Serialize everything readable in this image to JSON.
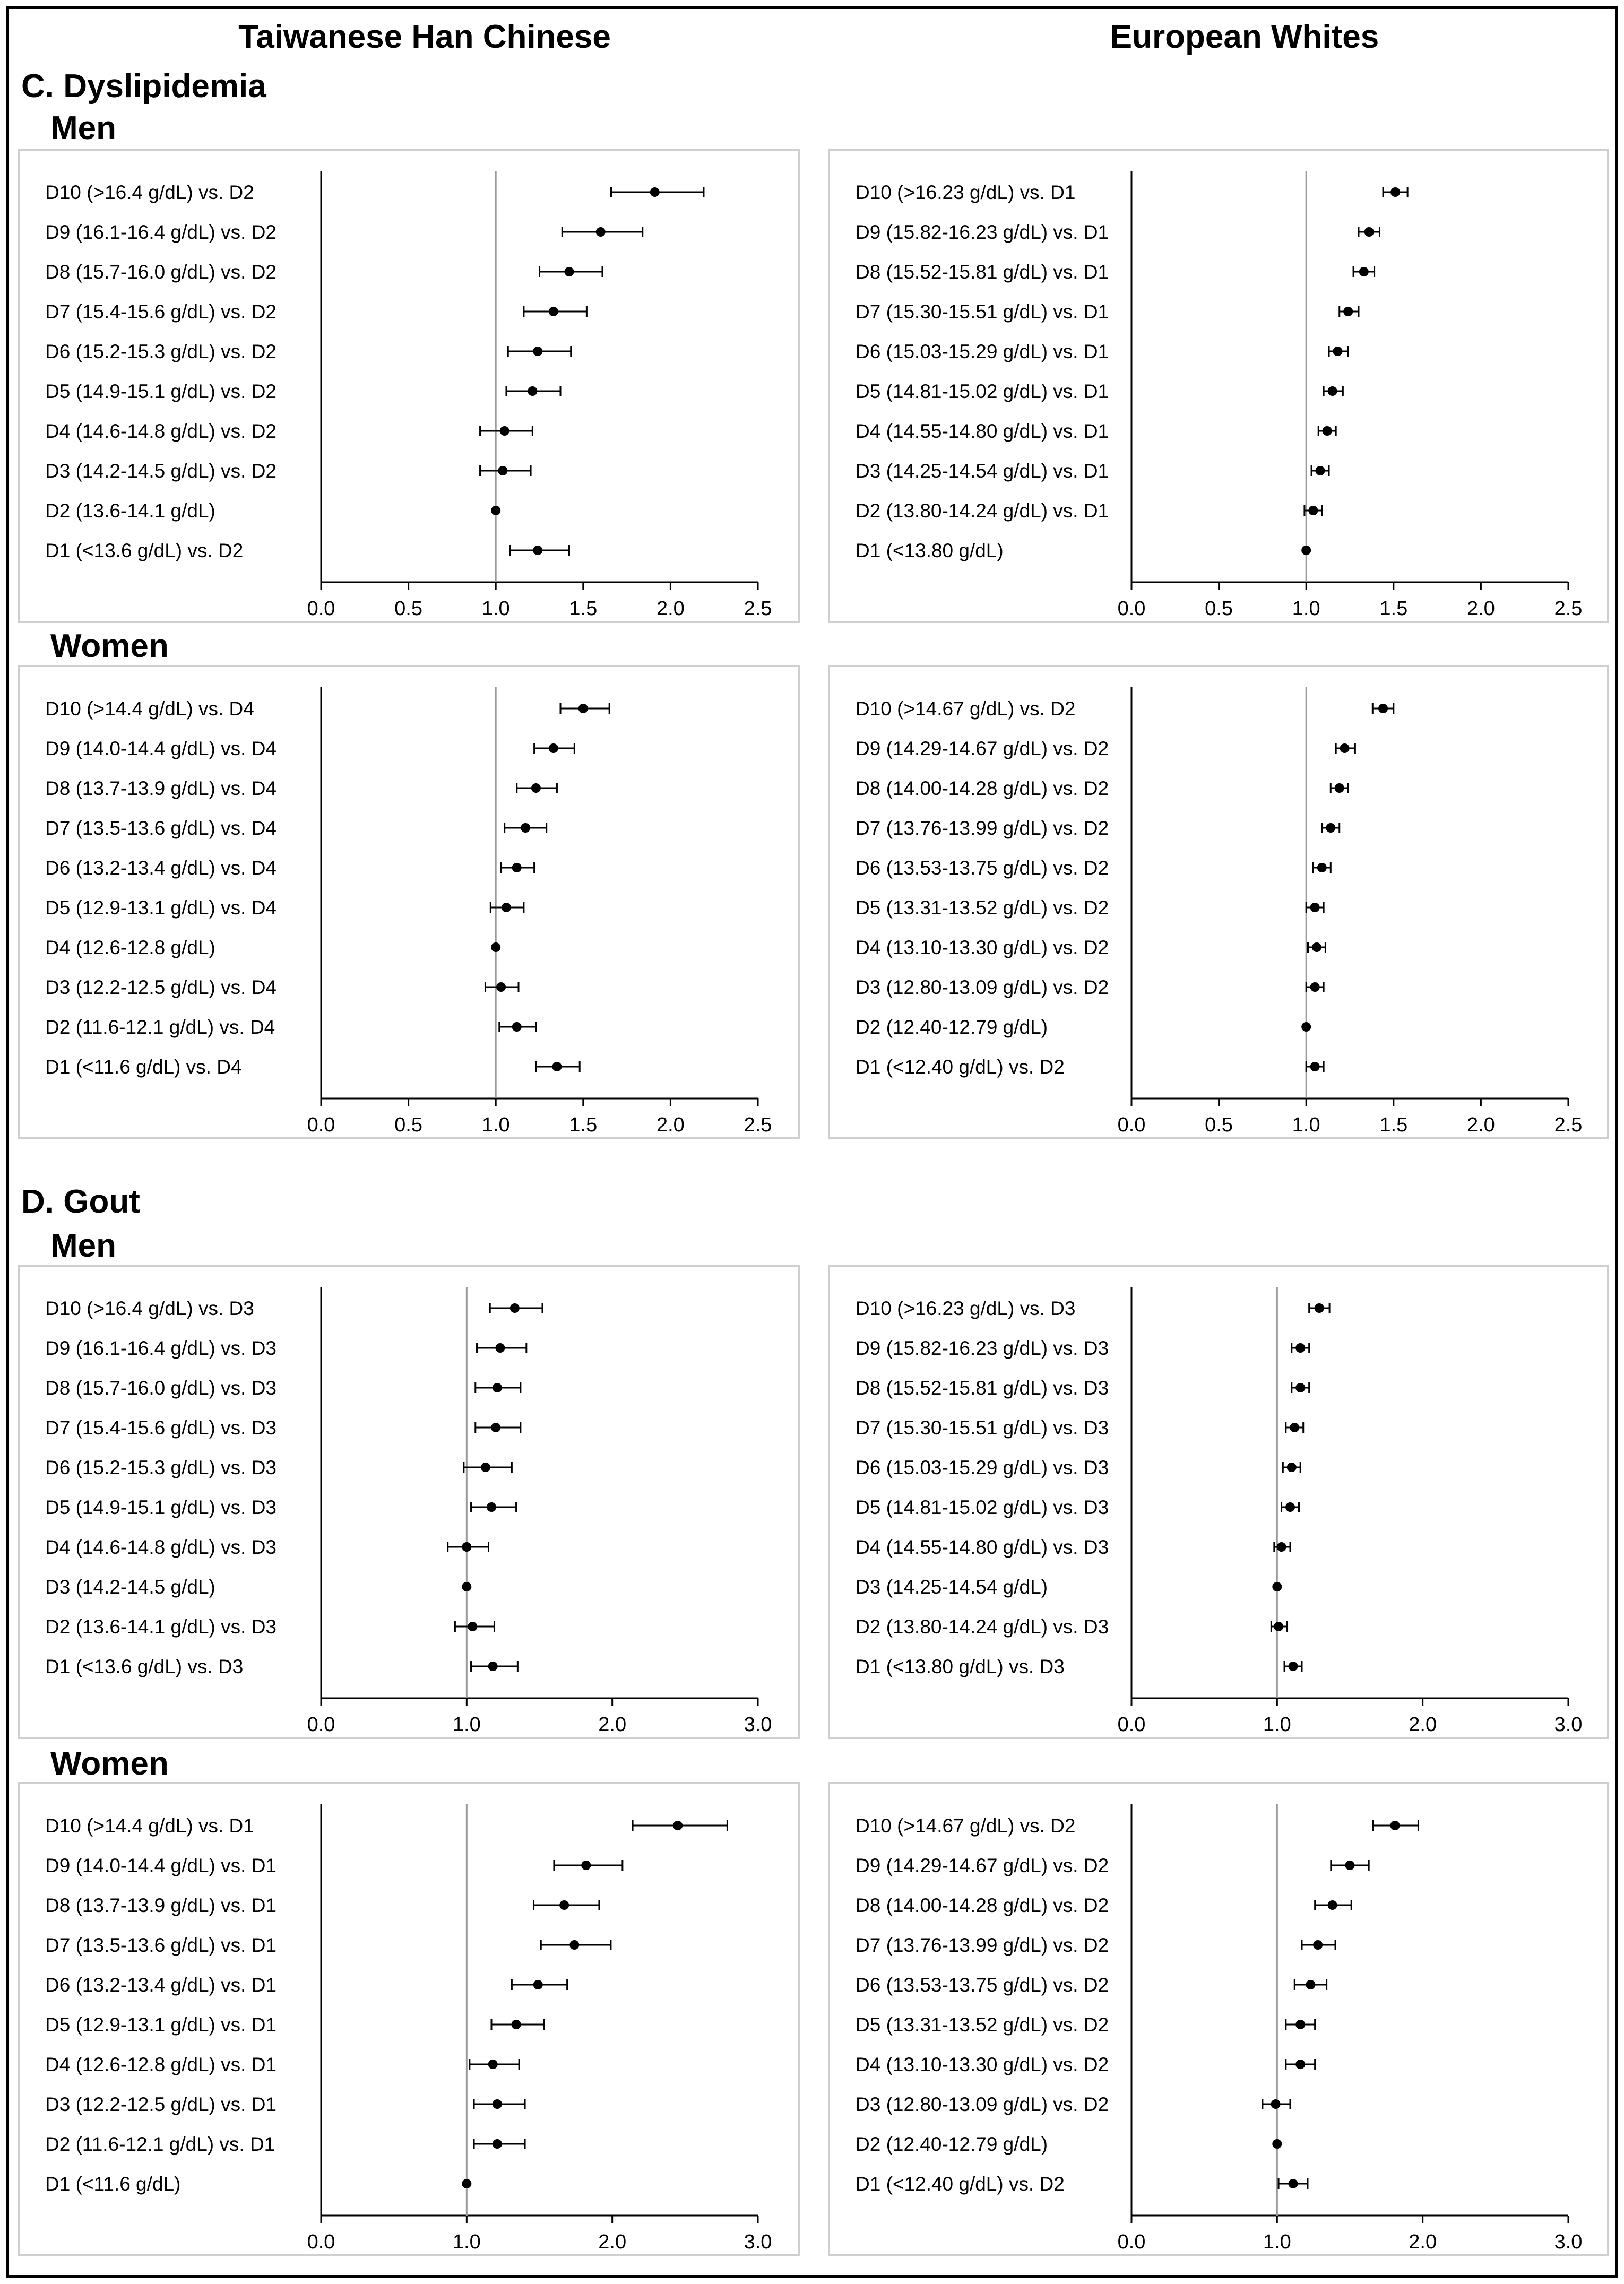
{
  "headers": {
    "left": "Taiwanese Han Chinese",
    "right": "European Whites"
  },
  "sections": [
    {
      "title": "C. Dyslipidemia",
      "groups": [
        "Men",
        "Women"
      ]
    },
    {
      "title": "D. Gout",
      "groups": [
        "Men",
        "Women"
      ]
    }
  ],
  "chart_data": [
    {
      "type": "forest",
      "population": "Taiwanese Han Chinese",
      "outcome": "Dyslipidemia",
      "sex": "Men",
      "xlim": [
        0,
        2.5
      ],
      "ticks": [
        "0.0",
        "0.5",
        "1.0",
        "1.5",
        "2.0",
        "2.5"
      ],
      "reference_line": 1.0,
      "rows": [
        {
          "label": "D10 (>16.4 g/dL) vs. D2",
          "est": 1.91,
          "lo": 1.66,
          "hi": 2.19
        },
        {
          "label": "D9 (16.1-16.4 g/dL) vs. D2",
          "est": 1.6,
          "lo": 1.38,
          "hi": 1.84
        },
        {
          "label": "D8 (15.7-16.0 g/dL) vs. D2",
          "est": 1.42,
          "lo": 1.25,
          "hi": 1.61
        },
        {
          "label": "D7 (15.4-15.6 g/dL) vs. D2",
          "est": 1.33,
          "lo": 1.16,
          "hi": 1.52
        },
        {
          "label": "D6 (15.2-15.3 g/dL) vs. D2",
          "est": 1.24,
          "lo": 1.07,
          "hi": 1.43
        },
        {
          "label": "D5 (14.9-15.1 g/dL) vs. D2",
          "est": 1.21,
          "lo": 1.06,
          "hi": 1.37
        },
        {
          "label": "D4 (14.6-14.8 g/dL) vs. D2",
          "est": 1.05,
          "lo": 0.91,
          "hi": 1.21
        },
        {
          "label": "D3 (14.2-14.5 g/dL) vs. D2",
          "est": 1.04,
          "lo": 0.91,
          "hi": 1.2
        },
        {
          "label": "D2 (13.6-14.1 g/dL)",
          "est": 1.0,
          "ref": true
        },
        {
          "label": "D1 (<13.6 g/dL) vs. D2",
          "est": 1.24,
          "lo": 1.08,
          "hi": 1.42
        }
      ]
    },
    {
      "type": "forest",
      "population": "European Whites",
      "outcome": "Dyslipidemia",
      "sex": "Men",
      "xlim": [
        0,
        2.5
      ],
      "ticks": [
        "0.0",
        "0.5",
        "1.0",
        "1.5",
        "2.0",
        "2.5"
      ],
      "reference_line": 1.0,
      "rows": [
        {
          "label": "D10 (>16.23 g/dL) vs. D1",
          "est": 1.51,
          "lo": 1.44,
          "hi": 1.58
        },
        {
          "label": "D9 (15.82-16.23 g/dL) vs. D1",
          "est": 1.36,
          "lo": 1.3,
          "hi": 1.42
        },
        {
          "label": "D8 (15.52-15.81 g/dL) vs. D1",
          "est": 1.33,
          "lo": 1.27,
          "hi": 1.39
        },
        {
          "label": "D7 (15.30-15.51 g/dL) vs. D1",
          "est": 1.24,
          "lo": 1.19,
          "hi": 1.3
        },
        {
          "label": "D6 (15.03-15.29 g/dL) vs. D1",
          "est": 1.18,
          "lo": 1.13,
          "hi": 1.24
        },
        {
          "label": "D5 (14.81-15.02 g/dL) vs. D1",
          "est": 1.15,
          "lo": 1.1,
          "hi": 1.21
        },
        {
          "label": "D4 (14.55-14.80 g/dL) vs. D1",
          "est": 1.12,
          "lo": 1.07,
          "hi": 1.17
        },
        {
          "label": "D3 (14.25-14.54 g/dL) vs. D1",
          "est": 1.08,
          "lo": 1.03,
          "hi": 1.13
        },
        {
          "label": "D2 (13.80-14.24 g/dL) vs. D1",
          "est": 1.04,
          "lo": 0.99,
          "hi": 1.09
        },
        {
          "label": "D1 (<13.80 g/dL)",
          "est": 1.0,
          "ref": true
        }
      ]
    },
    {
      "type": "forest",
      "population": "Taiwanese Han Chinese",
      "outcome": "Dyslipidemia",
      "sex": "Women",
      "xlim": [
        0,
        2.5
      ],
      "ticks": [
        "0.0",
        "0.5",
        "1.0",
        "1.5",
        "2.0",
        "2.5"
      ],
      "reference_line": 1.0,
      "rows": [
        {
          "label": "D10 (>14.4 g/dL) vs. D4",
          "est": 1.5,
          "lo": 1.37,
          "hi": 1.65
        },
        {
          "label": "D9 (14.0-14.4 g/dL) vs. D4",
          "est": 1.33,
          "lo": 1.22,
          "hi": 1.45
        },
        {
          "label": "D8 (13.7-13.9 g/dL) vs. D4",
          "est": 1.23,
          "lo": 1.12,
          "hi": 1.35
        },
        {
          "label": "D7 (13.5-13.6 g/dL) vs. D4",
          "est": 1.17,
          "lo": 1.05,
          "hi": 1.29
        },
        {
          "label": "D6 (13.2-13.4 g/dL) vs. D4",
          "est": 1.12,
          "lo": 1.03,
          "hi": 1.22
        },
        {
          "label": "D5 (12.9-13.1 g/dL) vs. D4",
          "est": 1.06,
          "lo": 0.97,
          "hi": 1.16
        },
        {
          "label": "D4 (12.6-12.8 g/dL)",
          "est": 1.0,
          "ref": true
        },
        {
          "label": "D3 (12.2-12.5 g/dL) vs. D4",
          "est": 1.03,
          "lo": 0.94,
          "hi": 1.13
        },
        {
          "label": "D2 (11.6-12.1 g/dL) vs. D4",
          "est": 1.12,
          "lo": 1.02,
          "hi": 1.23
        },
        {
          "label": "D1 (<11.6 g/dL) vs. D4",
          "est": 1.35,
          "lo": 1.23,
          "hi": 1.48
        }
      ]
    },
    {
      "type": "forest",
      "population": "European Whites",
      "outcome": "Dyslipidemia",
      "sex": "Women",
      "xlim": [
        0,
        2.5
      ],
      "ticks": [
        "0.0",
        "0.5",
        "1.0",
        "1.5",
        "2.0",
        "2.5"
      ],
      "reference_line": 1.0,
      "rows": [
        {
          "label": "D10 (>14.67 g/dL) vs. D2",
          "est": 1.44,
          "lo": 1.38,
          "hi": 1.5
        },
        {
          "label": "D9 (14.29-14.67 g/dL) vs. D2",
          "est": 1.22,
          "lo": 1.17,
          "hi": 1.28
        },
        {
          "label": "D8 (14.00-14.28 g/dL) vs. D2",
          "est": 1.19,
          "lo": 1.14,
          "hi": 1.24
        },
        {
          "label": "D7 (13.76-13.99 g/dL) vs. D2",
          "est": 1.14,
          "lo": 1.09,
          "hi": 1.19
        },
        {
          "label": "D6 (13.53-13.75 g/dL) vs. D2",
          "est": 1.09,
          "lo": 1.04,
          "hi": 1.14
        },
        {
          "label": "D5 (13.31-13.52 g/dL) vs. D2",
          "est": 1.05,
          "lo": 1.0,
          "hi": 1.1
        },
        {
          "label": "D4 (13.10-13.30 g/dL) vs. D2",
          "est": 1.06,
          "lo": 1.01,
          "hi": 1.11
        },
        {
          "label": "D3 (12.80-13.09 g/dL) vs. D2",
          "est": 1.05,
          "lo": 1.0,
          "hi": 1.1
        },
        {
          "label": "D2 (12.40-12.79 g/dL)",
          "est": 1.0,
          "ref": true
        },
        {
          "label": "D1 (<12.40 g/dL) vs. D2",
          "est": 1.05,
          "lo": 1.0,
          "hi": 1.1
        }
      ]
    },
    {
      "type": "forest",
      "population": "Taiwanese Han Chinese",
      "outcome": "Gout",
      "sex": "Men",
      "xlim": [
        0,
        3.0
      ],
      "ticks": [
        "0.0",
        "1.0",
        "2.0",
        "3.0"
      ],
      "reference_line": 1.0,
      "rows": [
        {
          "label": "D10 (>16.4 g/dL) vs. D3",
          "est": 1.33,
          "lo": 1.16,
          "hi": 1.52
        },
        {
          "label": "D9 (16.1-16.4 g/dL) vs. D3",
          "est": 1.23,
          "lo": 1.07,
          "hi": 1.41
        },
        {
          "label": "D8 (15.7-16.0 g/dL) vs. D3",
          "est": 1.21,
          "lo": 1.06,
          "hi": 1.37
        },
        {
          "label": "D7 (15.4-15.6 g/dL) vs. D3",
          "est": 1.2,
          "lo": 1.06,
          "hi": 1.37
        },
        {
          "label": "D6 (15.2-15.3 g/dL) vs. D3",
          "est": 1.13,
          "lo": 0.98,
          "hi": 1.31
        },
        {
          "label": "D5 (14.9-15.1 g/dL) vs. D3",
          "est": 1.17,
          "lo": 1.03,
          "hi": 1.34
        },
        {
          "label": "D4 (14.6-14.8 g/dL) vs. D3",
          "est": 1.0,
          "lo": 0.87,
          "hi": 1.15
        },
        {
          "label": "D3 (14.2-14.5 g/dL)",
          "est": 1.0,
          "ref": true
        },
        {
          "label": "D2 (13.6-14.1 g/dL) vs. D3",
          "est": 1.04,
          "lo": 0.92,
          "hi": 1.19
        },
        {
          "label": "D1 (<13.6 g/dL) vs. D3",
          "est": 1.18,
          "lo": 1.03,
          "hi": 1.35
        }
      ]
    },
    {
      "type": "forest",
      "population": "European Whites",
      "outcome": "Gout",
      "sex": "Men",
      "xlim": [
        0,
        3.0
      ],
      "ticks": [
        "0.0",
        "1.0",
        "2.0",
        "3.0"
      ],
      "reference_line": 1.0,
      "rows": [
        {
          "label": "D10 (>16.23 g/dL) vs. D3",
          "est": 1.29,
          "lo": 1.22,
          "hi": 1.36
        },
        {
          "label": "D9 (15.82-16.23 g/dL) vs. D3",
          "est": 1.16,
          "lo": 1.1,
          "hi": 1.22
        },
        {
          "label": "D8 (15.52-15.81 g/dL) vs. D3",
          "est": 1.16,
          "lo": 1.1,
          "hi": 1.22
        },
        {
          "label": "D7 (15.30-15.51 g/dL) vs. D3",
          "est": 1.12,
          "lo": 1.06,
          "hi": 1.18
        },
        {
          "label": "D6 (15.03-15.29 g/dL) vs. D3",
          "est": 1.1,
          "lo": 1.04,
          "hi": 1.16
        },
        {
          "label": "D5 (14.81-15.02 g/dL) vs. D3",
          "est": 1.09,
          "lo": 1.03,
          "hi": 1.15
        },
        {
          "label": "D4 (14.55-14.80 g/dL) vs. D3",
          "est": 1.03,
          "lo": 0.98,
          "hi": 1.09
        },
        {
          "label": "D3 (14.25-14.54 g/dL)",
          "est": 1.0,
          "ref": true
        },
        {
          "label": "D2 (13.80-14.24 g/dL) vs. D3",
          "est": 1.01,
          "lo": 0.96,
          "hi": 1.07
        },
        {
          "label": "D1 (<13.80 g/dL) vs. D3",
          "est": 1.11,
          "lo": 1.05,
          "hi": 1.17
        }
      ]
    },
    {
      "type": "forest",
      "population": "Taiwanese Han Chinese",
      "outcome": "Gout",
      "sex": "Women",
      "xlim": [
        0,
        3.0
      ],
      "ticks": [
        "0.0",
        "1.0",
        "2.0",
        "3.0"
      ],
      "reference_line": 1.0,
      "rows": [
        {
          "label": "D10 (>14.4 g/dL) vs. D1",
          "est": 2.45,
          "lo": 2.14,
          "hi": 2.79
        },
        {
          "label": "D9 (14.0-14.4 g/dL) vs. D1",
          "est": 1.82,
          "lo": 1.6,
          "hi": 2.07
        },
        {
          "label": "D8 (13.7-13.9 g/dL) vs. D1",
          "est": 1.67,
          "lo": 1.46,
          "hi": 1.91
        },
        {
          "label": "D7 (13.5-13.6 g/dL) vs. D1",
          "est": 1.74,
          "lo": 1.51,
          "hi": 1.99
        },
        {
          "label": "D6 (13.2-13.4 g/dL) vs. D1",
          "est": 1.49,
          "lo": 1.31,
          "hi": 1.69
        },
        {
          "label": "D5 (12.9-13.1 g/dL) vs. D1",
          "est": 1.34,
          "lo": 1.17,
          "hi": 1.53
        },
        {
          "label": "D4 (12.6-12.8 g/dL) vs. D1",
          "est": 1.18,
          "lo": 1.02,
          "hi": 1.36
        },
        {
          "label": "D3 (12.2-12.5 g/dL) vs. D1",
          "est": 1.21,
          "lo": 1.05,
          "hi": 1.4
        },
        {
          "label": "D2 (11.6-12.1 g/dL) vs. D1",
          "est": 1.21,
          "lo": 1.05,
          "hi": 1.4
        },
        {
          "label": "D1 (<11.6 g/dL)",
          "est": 1.0,
          "ref": true
        }
      ]
    },
    {
      "type": "forest",
      "population": "European Whites",
      "outcome": "Gout",
      "sex": "Women",
      "xlim": [
        0,
        3.0
      ],
      "ticks": [
        "0.0",
        "1.0",
        "2.0",
        "3.0"
      ],
      "reference_line": 1.0,
      "rows": [
        {
          "label": "D10 (>14.67 g/dL) vs. D2",
          "est": 1.81,
          "lo": 1.66,
          "hi": 1.97
        },
        {
          "label": "D9 (14.29-14.67 g/dL) vs. D2",
          "est": 1.5,
          "lo": 1.37,
          "hi": 1.63
        },
        {
          "label": "D8 (14.00-14.28 g/dL) vs. D2",
          "est": 1.38,
          "lo": 1.26,
          "hi": 1.51
        },
        {
          "label": "D7 (13.76-13.99 g/dL) vs. D2",
          "est": 1.28,
          "lo": 1.17,
          "hi": 1.4
        },
        {
          "label": "D6 (13.53-13.75 g/dL) vs. D2",
          "est": 1.23,
          "lo": 1.12,
          "hi": 1.34
        },
        {
          "label": "D5 (13.31-13.52 g/dL) vs. D2",
          "est": 1.16,
          "lo": 1.06,
          "hi": 1.26
        },
        {
          "label": "D4 (13.10-13.30 g/dL) vs. D2",
          "est": 1.16,
          "lo": 1.06,
          "hi": 1.26
        },
        {
          "label": "D3 (12.80-13.09 g/dL) vs. D2",
          "est": 0.99,
          "lo": 0.9,
          "hi": 1.09
        },
        {
          "label": "D2 (12.40-12.79 g/dL)",
          "est": 1.0,
          "ref": true
        },
        {
          "label": "D1 (<12.40 g/dL) vs. D2",
          "est": 1.11,
          "lo": 1.01,
          "hi": 1.21
        }
      ]
    }
  ]
}
